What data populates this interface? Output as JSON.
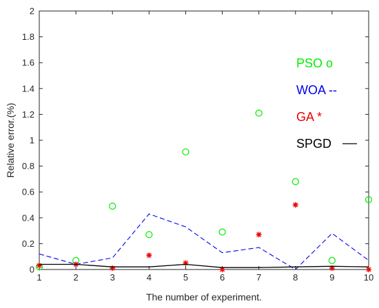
{
  "chart_data": {
    "type": "line",
    "xlabel": "The number of experiment.",
    "ylabel": "Relative error.(%)",
    "xlim": [
      1,
      10
    ],
    "ylim": [
      0,
      2
    ],
    "x": [
      1,
      2,
      3,
      4,
      5,
      6,
      7,
      8,
      9,
      10
    ],
    "xticks": [
      "1",
      "2",
      "3",
      "4",
      "5",
      "6",
      "7",
      "8",
      "9",
      "10"
    ],
    "yticks": [
      "0",
      "0.2",
      "0.4",
      "0.6",
      "0.8",
      "1",
      "1.2",
      "1.4",
      "1.6",
      "1.8",
      "2"
    ],
    "grid": false,
    "legend_position": "right",
    "series": [
      {
        "name": "PSO o",
        "style": "marker-circle",
        "color": "#00ee00",
        "values": [
          0.02,
          0.07,
          0.49,
          0.27,
          0.91,
          0.29,
          1.21,
          0.68,
          0.07,
          0.54
        ]
      },
      {
        "name": "WOA --",
        "style": "dashed-line",
        "color": "#0000ee",
        "values": [
          0.12,
          0.04,
          0.09,
          0.43,
          0.33,
          0.13,
          0.17,
          0.0,
          0.28,
          0.07
        ]
      },
      {
        "name": "GA *",
        "style": "marker-star",
        "color": "#ee0000",
        "values": [
          0.03,
          0.04,
          0.01,
          0.11,
          0.05,
          0.0,
          0.27,
          0.5,
          0.01,
          0.0
        ]
      },
      {
        "name": "SPGD",
        "style": "solid-line",
        "color": "#000000",
        "values": [
          0.04,
          0.04,
          0.02,
          0.02,
          0.04,
          0.015,
          0.015,
          0.02,
          0.025,
          0.02
        ]
      }
    ],
    "legend": [
      {
        "label": "PSO o",
        "color": "#00ee00"
      },
      {
        "label": "WOA --",
        "color": "#0000ee"
      },
      {
        "label": "GA *",
        "color": "#ee0000"
      },
      {
        "label": "SPGD",
        "color": "#000000",
        "swatch": "line"
      }
    ]
  }
}
